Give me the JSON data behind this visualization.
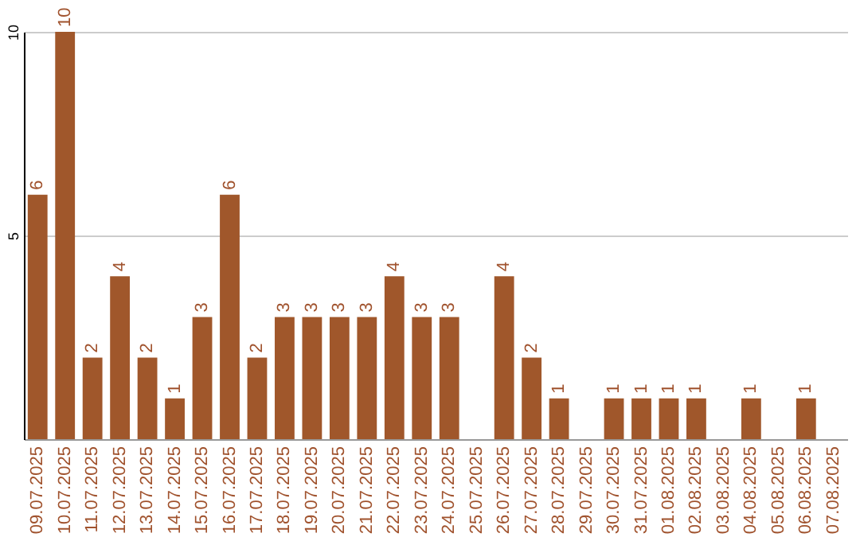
{
  "chart_data": {
    "type": "bar",
    "categories": [
      "09.07.2025",
      "10.07.2025",
      "11.07.2025",
      "12.07.2025",
      "13.07.2025",
      "14.07.2025",
      "15.07.2025",
      "16.07.2025",
      "17.07.2025",
      "18.07.2025",
      "19.07.2025",
      "20.07.2025",
      "21.07.2025",
      "22.07.2025",
      "23.07.2025",
      "24.07.2025",
      "25.07.2025",
      "26.07.2025",
      "27.07.2025",
      "28.07.2025",
      "29.07.2025",
      "30.07.2025",
      "31.07.2025",
      "01.08.2025",
      "02.08.2025",
      "03.08.2025",
      "04.08.2025",
      "05.08.2025",
      "06.08.2025",
      "07.08.2025"
    ],
    "values": [
      6,
      10,
      2,
      4,
      2,
      1,
      3,
      6,
      2,
      3,
      3,
      3,
      3,
      4,
      3,
      3,
      0,
      4,
      2,
      1,
      0,
      1,
      1,
      1,
      1,
      0,
      1,
      0,
      1,
      0
    ],
    "value_labels": [
      "6",
      "10",
      "2",
      "4",
      "2",
      "1",
      "3",
      "6",
      "2",
      "3",
      "3",
      "3",
      "3",
      "4",
      "3",
      "3",
      null,
      "4",
      "2",
      "1",
      null,
      "1",
      "1",
      "1",
      "1",
      null,
      "1",
      null,
      "1",
      null
    ],
    "color": "#a0572b",
    "ylim": [
      0,
      10
    ],
    "yticks": [
      5,
      10
    ],
    "grid": "y"
  }
}
